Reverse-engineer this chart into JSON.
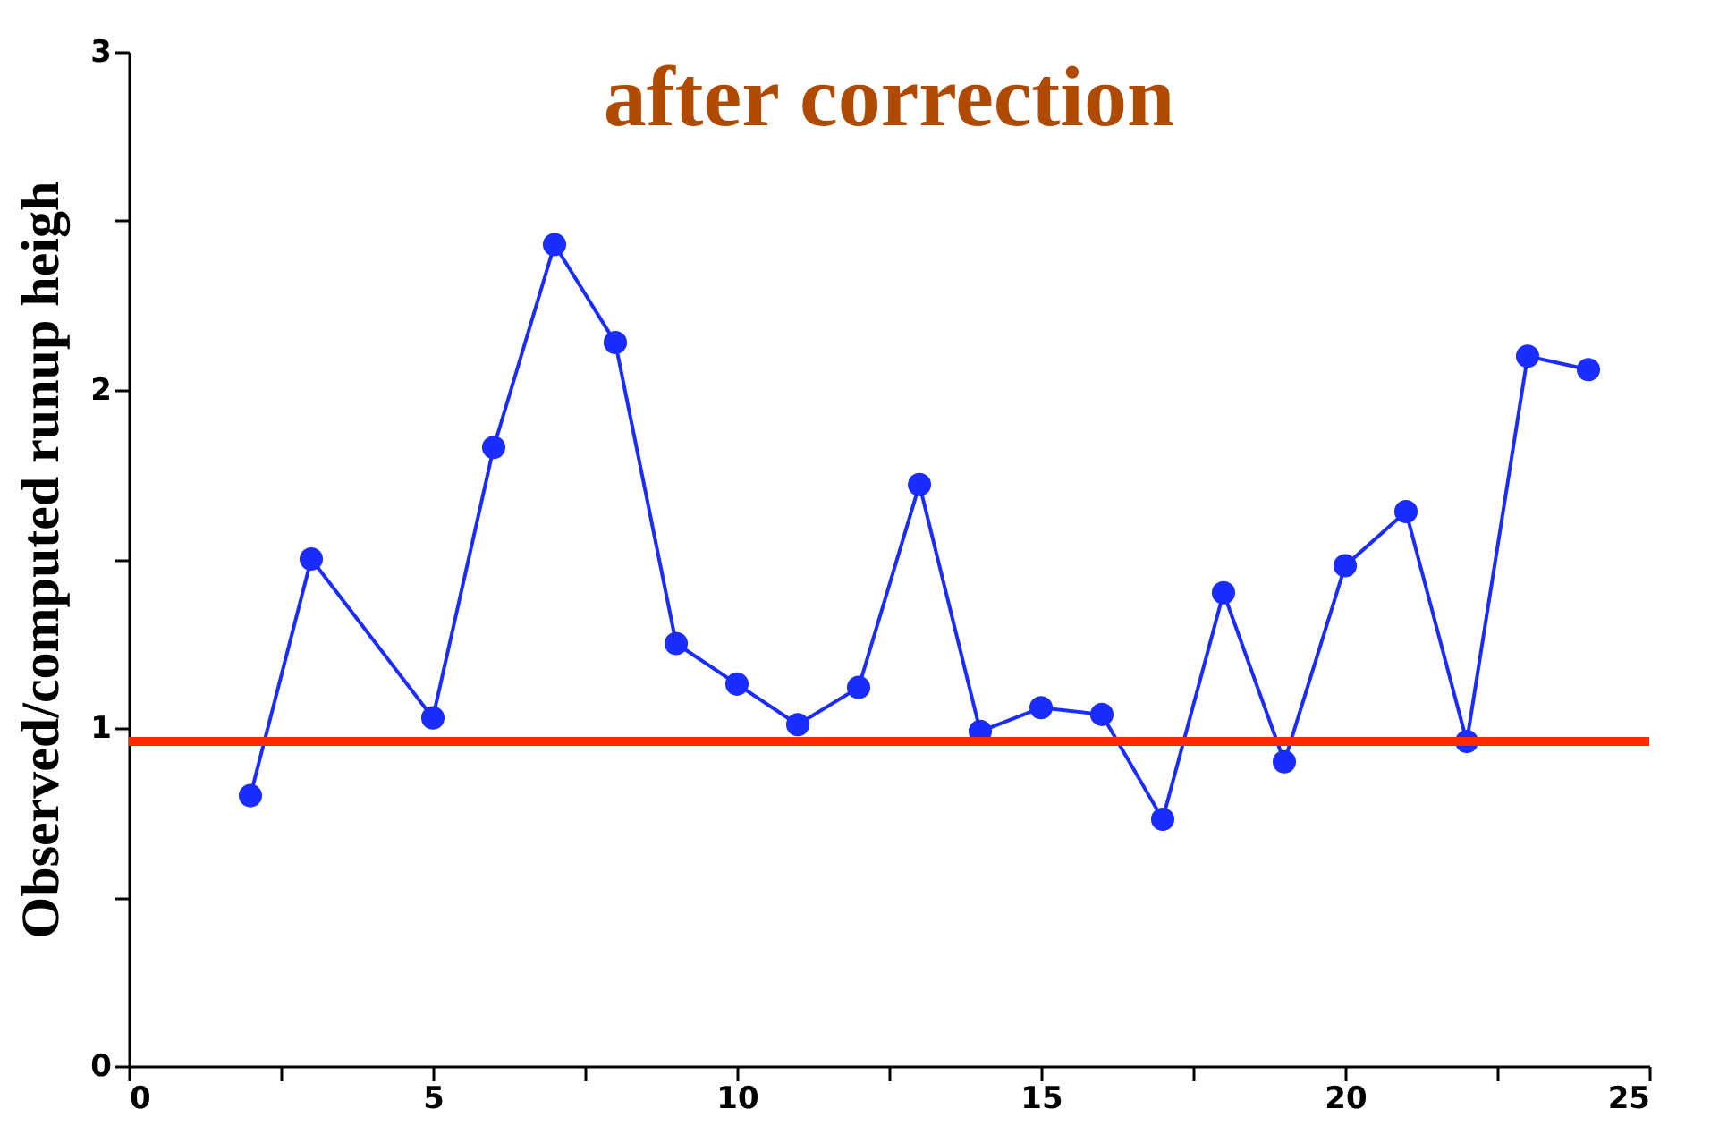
{
  "chart_data": {
    "type": "line",
    "title": "after correction",
    "ylabel": "Observed/computed runup heigh",
    "x": [
      2,
      3,
      5,
      6,
      7,
      8,
      9,
      10,
      11,
      12,
      13,
      14,
      15,
      16,
      17,
      18,
      19,
      20,
      21,
      22,
      23,
      24
    ],
    "series": [
      {
        "color": "#1a2cff",
        "values": [
          0.8,
          1.5,
          1.03,
          1.83,
          2.43,
          2.14,
          1.25,
          1.13,
          1.01,
          1.12,
          1.72,
          0.99,
          1.06,
          1.04,
          0.73,
          1.4,
          0.9,
          1.48,
          1.64,
          0.96,
          2.1,
          2.06
        ]
      }
    ],
    "marker": "circle",
    "line_style": "solid",
    "grid": false,
    "xlim": [
      0,
      25
    ],
    "xticks": [
      0,
      {
        "value": 2.5,
        "label": null
      },
      5,
      {
        "value": 7.5,
        "label": null
      },
      10,
      {
        "value": 12.5,
        "label": null
      },
      15,
      {
        "value": 17.5,
        "label": null
      },
      20,
      {
        "value": 22.5,
        "label": null
      },
      25
    ],
    "ylim": [
      0,
      3
    ],
    "yticks": [
      0,
      {
        "value": 0.5,
        "label": null
      },
      1,
      {
        "value": 1.5,
        "label": null
      },
      2,
      {
        "value": 2.5,
        "label": null
      },
      3
    ],
    "ref_lines": [
      {
        "axis": "y",
        "value": 0.96,
        "color": "#ff2a00",
        "line_style": "solid"
      }
    ]
  }
}
